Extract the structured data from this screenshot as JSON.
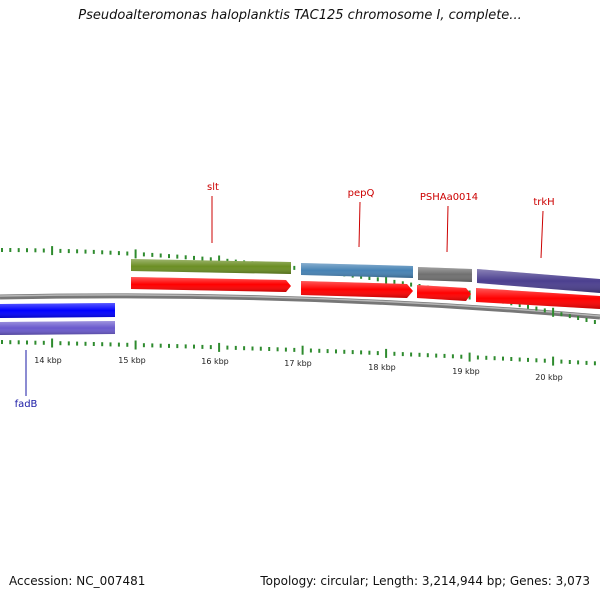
{
  "title": "Pseudoalteromonas haloplanktis TAC125 chromosome I, complete...",
  "accession": "Accession: NC_007481",
  "summary": "Topology: circular; Length: 3,214,944 bp; Genes: 3,073",
  "ruler": {
    "labels": [
      "14 kbp",
      "15 kbp",
      "16 kbp",
      "17 kbp",
      "18 kbp",
      "19 kbp",
      "20 kbp"
    ],
    "tick_color": "#2e8b2e",
    "backbone_color": "#8a8a8a"
  },
  "genes": [
    {
      "name": "slt",
      "strand": "+",
      "feature_color": "#6b8e23",
      "cds_color": "#ff0000",
      "label_color": "#cc0000"
    },
    {
      "name": "pepQ",
      "strand": "+",
      "feature_color": "#4682b4",
      "cds_color": "#ff0000",
      "label_color": "#cc0000"
    },
    {
      "name": "PSHAa0014",
      "strand": "+",
      "feature_color": "#707070",
      "cds_color": "#ff0000",
      "label_color": "#cc0000"
    },
    {
      "name": "trkH",
      "strand": "+",
      "feature_color": "#4b3f8f",
      "cds_color": "#ff0000",
      "label_color": "#cc0000"
    },
    {
      "name": "fadB",
      "strand": "-",
      "feature_color": "#6a5acd",
      "cds_color": "#0000ff",
      "label_color": "#1a1aa6"
    }
  ]
}
